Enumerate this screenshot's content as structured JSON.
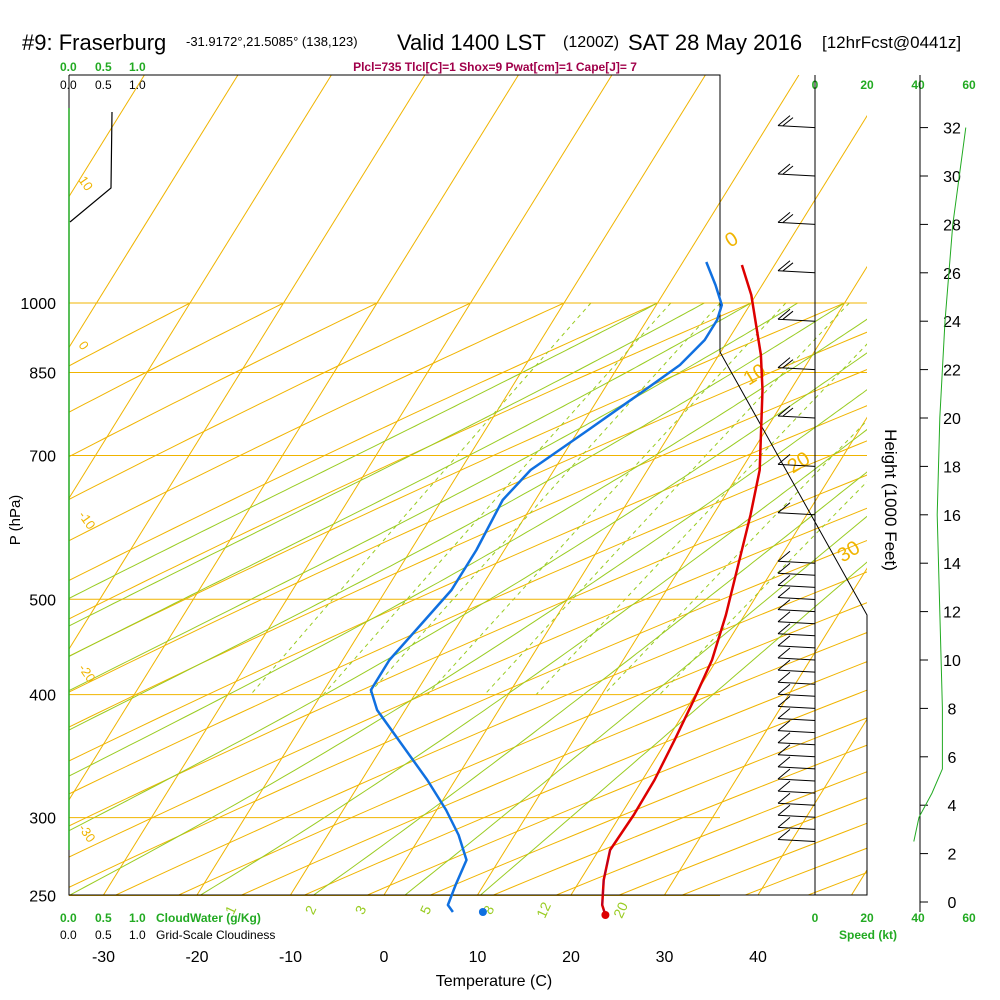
{
  "header": {
    "station": "#9: Fraserburg",
    "coords": "-31.9172°,21.5085° (138,123)",
    "valid": "Valid 1400 LST",
    "zulu": "(1200Z)",
    "date": "SAT 28 May 2016",
    "forecast": "[12hrFcst@0441z]",
    "params": "Plcl=735 Tlcl[C]=1 Shox=9 Pwat[cm]=1 Cape[J]= 7"
  },
  "labels": {
    "pressure_axis": "P (hPa)",
    "temperature_axis": "Temperature (C)",
    "height_axis": "Height (1000 Feet)",
    "speed_axis": "Speed (kt)",
    "cloudwater_legend": "CloudWater (g/Kg)",
    "cloudiness_legend": "Grid-Scale Cloudiness"
  },
  "scales": {
    "cloud_ticks": [
      "0.0",
      "0.5",
      "1.0"
    ],
    "speed_inner_ticks": [
      "0",
      "20",
      "40"
    ],
    "speed_outer_ticks": [
      "20",
      "40",
      "60"
    ]
  },
  "chart_data": {
    "type": "line",
    "title": "Skew-T log-P sounding",
    "pressure_ticks": [
      250,
      300,
      400,
      500,
      700,
      850,
      1000
    ],
    "temperature_ticks": [
      -30,
      -20,
      -10,
      0,
      10,
      20,
      30,
      40
    ],
    "height_ticks_kft": [
      0,
      2,
      4,
      6,
      8,
      10,
      12,
      14,
      16,
      18,
      20,
      22,
      24,
      26,
      28,
      30,
      32
    ],
    "isotherm_labels": [
      "0",
      "10",
      "20",
      "30"
    ],
    "dry_adiabat_labels": [
      "10",
      "0",
      "-10",
      "-20",
      "-30"
    ],
    "mixing_ratio_labels": [
      "1",
      "2",
      "3",
      "5",
      "8",
      "12",
      "20"
    ],
    "series": [
      {
        "name": "Temperature",
        "color": "#dd0000",
        "points": [
          [
            -3.5,
            265
          ],
          [
            -0.5,
            295
          ],
          [
            2,
            325
          ],
          [
            4.5,
            355
          ],
          [
            7,
            390
          ],
          [
            9.5,
            430
          ],
          [
            12,
            470
          ],
          [
            14,
            515
          ],
          [
            16,
            565
          ],
          [
            18,
            615
          ],
          [
            19.5,
            660
          ],
          [
            20.2,
            700
          ],
          [
            20.8,
            740
          ],
          [
            21.3,
            780
          ],
          [
            21.4,
            815
          ],
          [
            21.2,
            850
          ],
          [
            22.5,
            880
          ],
          [
            24,
            905
          ],
          [
            25,
            915
          ]
        ]
      },
      {
        "name": "Dewpoint",
        "color": "#1070e0",
        "points": [
          [
            -7.5,
            262
          ],
          [
            -5,
            285
          ],
          [
            -3,
            305
          ],
          [
            -2.5,
            320
          ],
          [
            -2.5,
            340
          ],
          [
            -3.5,
            365
          ],
          [
            -6,
            395
          ],
          [
            -9,
            430
          ],
          [
            -12.5,
            470
          ],
          [
            -13.5,
            500
          ],
          [
            -13,
            550
          ],
          [
            -13,
            590
          ],
          [
            -14,
            625
          ],
          [
            -15,
            660
          ],
          [
            -15,
            690
          ],
          [
            -13,
            710
          ],
          [
            -8,
            745
          ],
          [
            -3,
            780
          ],
          [
            1,
            810
          ],
          [
            4,
            835
          ],
          [
            6.5,
            860
          ],
          [
            7,
            885
          ],
          [
            7.5,
            905
          ],
          [
            8.5,
            912
          ]
        ]
      },
      {
        "name": "Parcel",
        "color": "#aa0033",
        "points": [
          [
            21.2,
            850
          ],
          [
            22.5,
            880
          ],
          [
            24,
            905
          ],
          [
            25,
            915
          ]
        ]
      },
      {
        "name": "Surface dewpoint",
        "color": "#1070e0",
        "points": [
          [
            11.7,
            912
          ]
        ]
      },
      {
        "name": "Surface temperature",
        "color": "#dd0000",
        "points": [
          [
            25,
            915
          ]
        ]
      }
    ],
    "wind_barb_heights_kft": [
      32,
      30,
      28,
      26,
      24,
      22,
      20,
      18,
      16,
      14,
      13.5,
      13,
      12.5,
      12,
      11.5,
      11,
      10.5,
      10,
      9.5,
      9,
      8.5,
      8,
      7.5,
      7,
      6.5,
      6,
      5.5,
      5,
      4.5,
      4,
      3.5,
      3,
      2.5
    ],
    "wind_speed_profile_kt": [
      [
        2.5,
        38
      ],
      [
        3.5,
        40
      ],
      [
        4.5,
        45
      ],
      [
        5.5,
        49
      ],
      [
        8,
        49
      ],
      [
        12,
        48
      ],
      [
        16,
        47
      ],
      [
        20,
        48
      ],
      [
        24,
        50
      ],
      [
        28,
        53
      ],
      [
        32,
        58
      ]
    ],
    "xlim": [
      -35,
      45
    ],
    "ylim": [
      1000,
      250
    ],
    "height_range_kft": [
      0,
      33
    ],
    "grid": true,
    "legend": "none"
  }
}
